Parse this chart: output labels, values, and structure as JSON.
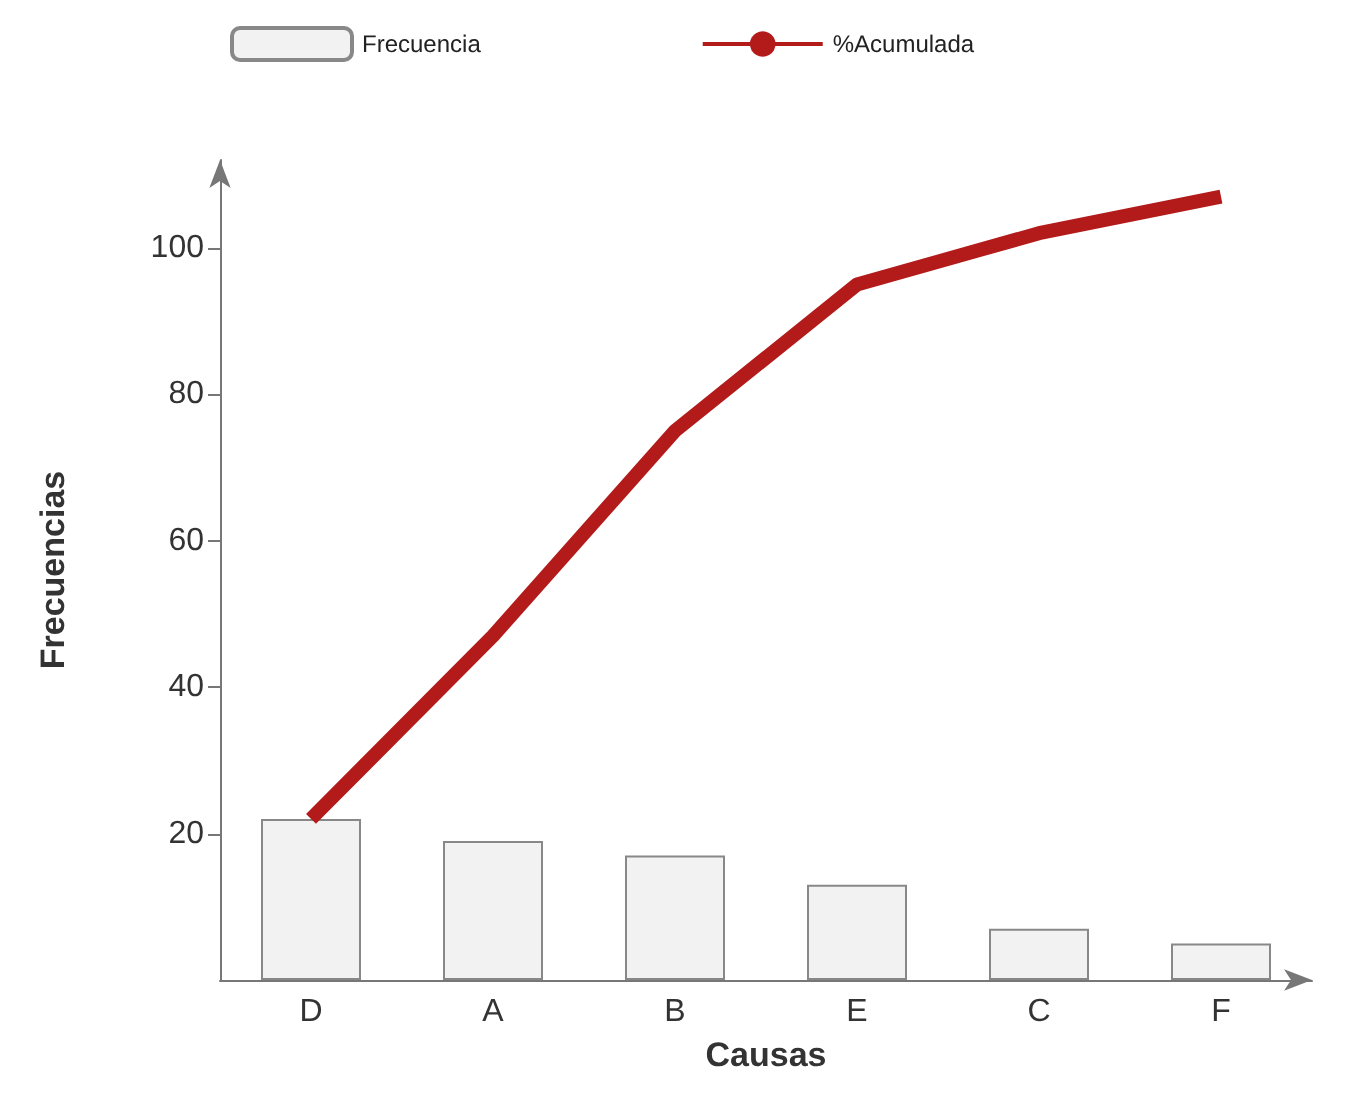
{
  "chart_data": {
    "type": "bar",
    "xlabel": "Causas",
    "ylabel": "Frecuencias",
    "categories": [
      "D",
      "A",
      "B",
      "E",
      "C",
      "F"
    ],
    "series": [
      {
        "name": "Frecuencia",
        "color": "#f2f2f2",
        "values": [
          22,
          19,
          17,
          13,
          7,
          5
        ]
      },
      {
        "name": "%Acumulada",
        "type": "line",
        "color": "#b31b1b",
        "values": [
          22,
          47,
          75,
          95,
          102,
          107
        ]
      }
    ],
    "ylim": [
      0,
      112
    ],
    "yticks": [
      20,
      40,
      60,
      80,
      100
    ],
    "grid": false,
    "legend": "top",
    "marker": "none"
  }
}
